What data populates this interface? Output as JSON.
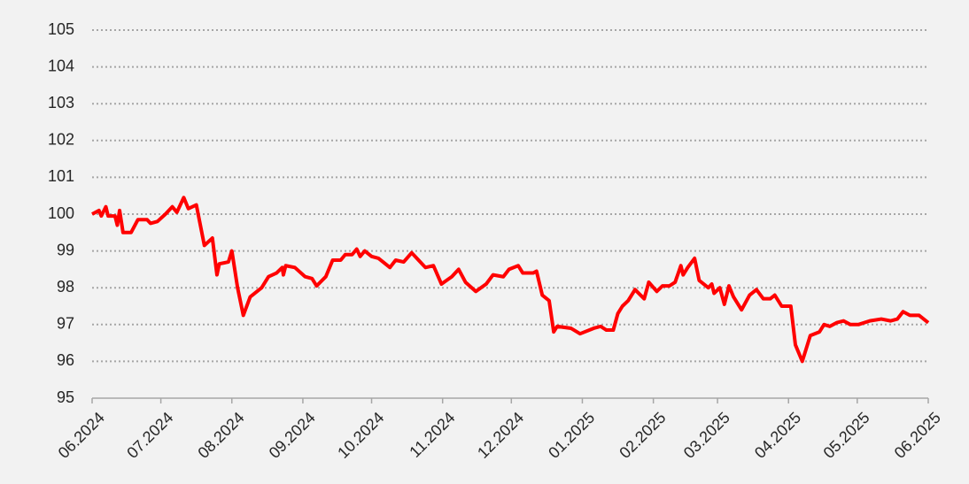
{
  "chart_data": {
    "type": "line",
    "x": [
      0,
      3,
      4,
      6,
      7,
      10,
      11,
      12,
      13.5,
      17,
      20,
      24,
      25.5,
      28.5,
      32,
      35,
      37,
      40,
      42,
      45.5,
      49,
      52.5,
      54.5,
      55.5,
      59.5,
      61,
      63.5,
      66,
      69,
      74,
      77,
      80.5,
      83,
      83.5,
      84.5,
      88.5,
      93,
      96,
      98,
      102,
      105,
      108.5,
      110.5,
      113.5,
      115.5,
      117,
      119,
      122,
      125,
      127,
      130,
      132.5,
      136,
      139.5,
      142.5,
      145.5,
      149,
      152.5,
      157,
      160,
      163,
      167.5,
      172,
      175,
      179.5,
      182,
      186,
      188,
      192.5,
      194,
      196.5,
      199.5,
      201.5,
      203,
      209,
      213,
      219,
      222,
      224.5,
      227.5,
      229.5,
      231.5,
      234,
      237,
      241,
      243,
      246.5,
      249,
      252,
      254.5,
      257,
      258,
      260,
      263,
      265,
      269,
      270.5,
      271.5,
      274,
      276,
      278,
      280,
      283.5,
      287,
      290,
      293,
      296,
      298,
      301,
      305,
      307,
      310,
      311.5,
      313.5,
      317.5,
      319.5,
      322,
      325,
      328,
      331,
      334.5,
      339.5,
      344.5,
      348.5,
      351.5,
      354,
      357,
      361,
      365
    ],
    "values": [
      100.0,
      100.1,
      99.95,
      100.2,
      99.95,
      99.95,
      99.7,
      100.1,
      99.5,
      99.5,
      99.85,
      99.85,
      99.75,
      99.8,
      100.0,
      100.2,
      100.05,
      100.45,
      100.15,
      100.25,
      99.15,
      99.35,
      98.35,
      98.65,
      98.7,
      99.0,
      98.0,
      97.25,
      97.75,
      98.0,
      98.3,
      98.4,
      98.55,
      98.35,
      98.6,
      98.55,
      98.3,
      98.25,
      98.05,
      98.3,
      98.75,
      98.75,
      98.9,
      98.9,
      99.05,
      98.85,
      99.0,
      98.85,
      98.8,
      98.7,
      98.55,
      98.75,
      98.7,
      98.95,
      98.75,
      98.55,
      98.6,
      98.1,
      98.3,
      98.5,
      98.15,
      97.9,
      98.1,
      98.35,
      98.3,
      98.5,
      98.6,
      98.4,
      98.4,
      98.45,
      97.8,
      97.65,
      96.8,
      96.95,
      96.9,
      96.75,
      96.9,
      96.95,
      96.85,
      96.85,
      97.3,
      97.5,
      97.65,
      97.95,
      97.7,
      98.15,
      97.9,
      98.05,
      98.05,
      98.15,
      98.6,
      98.35,
      98.55,
      98.8,
      98.2,
      98.0,
      98.1,
      97.85,
      98.0,
      97.55,
      98.05,
      97.75,
      97.4,
      97.8,
      97.95,
      97.7,
      97.7,
      97.8,
      97.5,
      97.5,
      96.45,
      96.0,
      96.3,
      96.7,
      96.8,
      97.0,
      96.95,
      97.05,
      97.1,
      97.0,
      97.0,
      97.1,
      97.15,
      97.1,
      97.15,
      97.35,
      97.25,
      97.25,
      97.05
    ],
    "color": "#ff0000",
    "xlim": [
      0,
      365
    ],
    "xticks": [
      {
        "value": 0,
        "label": "06.2024"
      },
      {
        "value": 30,
        "label": "07.2024"
      },
      {
        "value": 61,
        "label": "08.2024"
      },
      {
        "value": 92,
        "label": "09.2024"
      },
      {
        "value": 122,
        "label": "10.2024"
      },
      {
        "value": 153,
        "label": "11.2024"
      },
      {
        "value": 183,
        "label": "12.2024"
      },
      {
        "value": 214,
        "label": "01.2025"
      },
      {
        "value": 245,
        "label": "02.2025"
      },
      {
        "value": 273,
        "label": "03.2025"
      },
      {
        "value": 304,
        "label": "04.2025"
      },
      {
        "value": 334,
        "label": "05.2025"
      },
      {
        "value": 365,
        "label": "06.2025"
      }
    ],
    "ylim": [
      95,
      105
    ],
    "yticks": [
      95,
      96,
      97,
      98,
      99,
      100,
      101,
      102,
      103,
      104,
      105
    ],
    "grid": true
  }
}
